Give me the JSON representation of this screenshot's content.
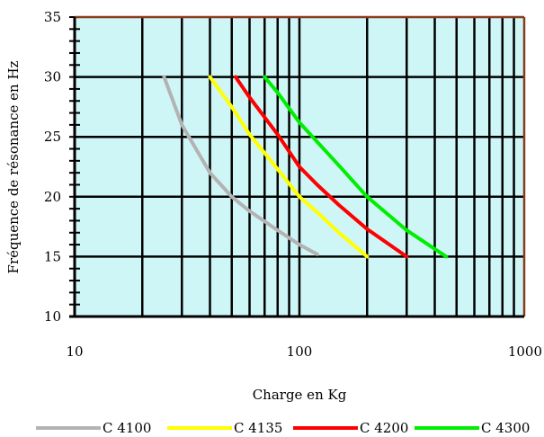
{
  "chart_data": {
    "type": "line",
    "title": "",
    "xlabel": "Charge en Kg",
    "ylabel": "Fréquence de résonance en Hz",
    "xscale": "log",
    "xlim": [
      10,
      1000
    ],
    "ylim": [
      10,
      35
    ],
    "x_ticks": [
      "10",
      "100",
      "1000"
    ],
    "y_ticks": [
      "10",
      "15",
      "20",
      "25",
      "30",
      "35"
    ],
    "grid": true,
    "background": "#cff6f7",
    "legend_position": "bottom",
    "series": [
      {
        "name": "C 4100",
        "color": "#b3b3b3",
        "points": [
          [
            25,
            30
          ],
          [
            30,
            26
          ],
          [
            40,
            22
          ],
          [
            50,
            20
          ],
          [
            60,
            18.8
          ],
          [
            80,
            17.2
          ],
          [
            100,
            16
          ],
          [
            120,
            15.2
          ]
        ]
      },
      {
        "name": "C 4135",
        "color": "#ffff00",
        "points": [
          [
            40,
            30
          ],
          [
            50,
            27.5
          ],
          [
            60,
            25.2
          ],
          [
            80,
            22.3
          ],
          [
            100,
            20
          ],
          [
            120,
            18.7
          ],
          [
            150,
            17
          ],
          [
            200,
            15
          ]
        ]
      },
      {
        "name": "C 4200",
        "color": "#ff0000",
        "points": [
          [
            52,
            30
          ],
          [
            60,
            28.3
          ],
          [
            80,
            25.2
          ],
          [
            100,
            22.5
          ],
          [
            120,
            21
          ],
          [
            150,
            19.3
          ],
          [
            200,
            17.3
          ],
          [
            300,
            15
          ]
        ]
      },
      {
        "name": "C 4300",
        "color": "#00ee00",
        "points": [
          [
            70,
            30
          ],
          [
            80,
            28.7
          ],
          [
            100,
            26.2
          ],
          [
            150,
            22.6
          ],
          [
            200,
            20
          ],
          [
            300,
            17.2
          ],
          [
            450,
            15
          ]
        ]
      }
    ]
  }
}
